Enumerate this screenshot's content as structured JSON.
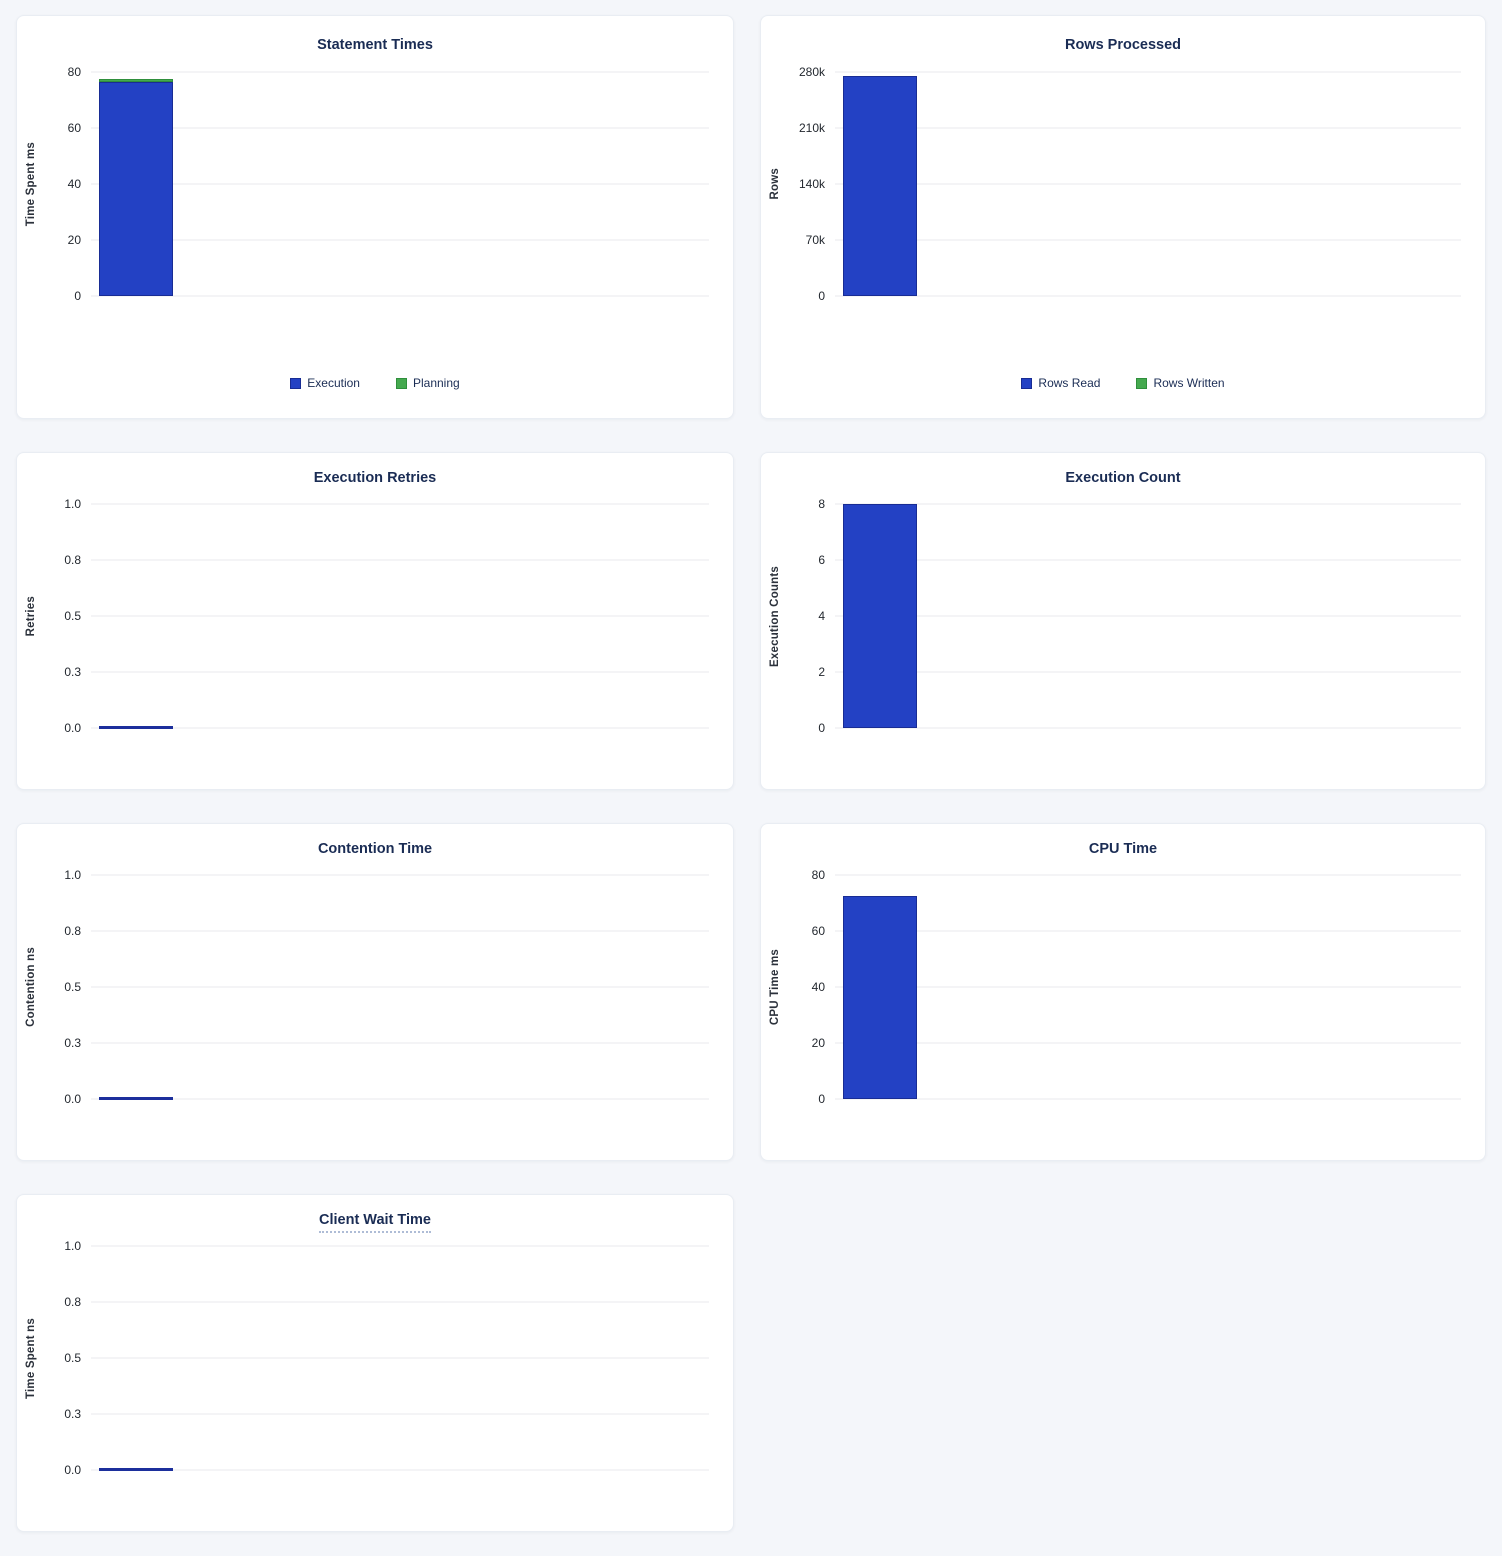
{
  "colors": {
    "page_background": "#f4f6fa",
    "panel_background": "#ffffff",
    "title_text": "#1a2c54",
    "tick_text": "#23282f",
    "gridline": "#e9eaed",
    "bar_blue": "#2341c4",
    "bar_blue_border": "#182c94",
    "bar_green": "#45a94f",
    "bar_green_border": "#2f8f3c",
    "zero_line": "#1c2f9c"
  },
  "chart_data": [
    {
      "type": "bar",
      "title": "Statement Times",
      "ylabel": "Time Spent ms",
      "ylim": [
        0,
        80
      ],
      "ytick_labels": [
        "80",
        "60",
        "40",
        "20",
        "0"
      ],
      "categories": [
        ""
      ],
      "stacked": true,
      "grid": "horizontal",
      "legend": true,
      "legend_position": "bottom",
      "series": [
        {
          "name": "Execution",
          "values": [
            76.5
          ],
          "color": "#2341c4",
          "border": "#182c94"
        },
        {
          "name": "Planning",
          "values": [
            1.2
          ],
          "color": "#45a94f",
          "border": "#2f8f3c"
        }
      ]
    },
    {
      "type": "bar",
      "title": "Rows Processed",
      "ylabel": "Rows",
      "ylim": [
        0,
        280000
      ],
      "ytick_labels": [
        "280k",
        "210k",
        "140k",
        "70k",
        "0"
      ],
      "categories": [
        ""
      ],
      "stacked": true,
      "grid": "horizontal",
      "legend": true,
      "legend_position": "bottom",
      "series": [
        {
          "name": "Rows Read",
          "values": [
            275000
          ],
          "color": "#2341c4",
          "border": "#182c94"
        },
        {
          "name": "Rows Written",
          "values": [
            0
          ],
          "color": "#45a94f",
          "border": "#2f8f3c"
        }
      ]
    },
    {
      "type": "bar",
      "title": "Execution Retries",
      "ylabel": "Retries",
      "ylim": [
        0,
        1
      ],
      "ytick_labels": [
        "1.0",
        "0.8",
        "0.5",
        "0.3",
        "0.0"
      ],
      "categories": [
        ""
      ],
      "stacked": false,
      "grid": "horizontal",
      "legend": false,
      "series": [
        {
          "name": "Retries",
          "values": [
            0
          ],
          "color": "#2341c4",
          "border": "#182c94"
        }
      ]
    },
    {
      "type": "bar",
      "title": "Execution Count",
      "ylabel": "Execution Counts",
      "ylim": [
        0,
        8
      ],
      "ytick_labels": [
        "8",
        "6",
        "4",
        "2",
        "0"
      ],
      "categories": [
        ""
      ],
      "stacked": false,
      "grid": "horizontal",
      "legend": false,
      "series": [
        {
          "name": "Execution Count",
          "values": [
            8
          ],
          "color": "#2341c4",
          "border": "#182c94"
        }
      ]
    },
    {
      "type": "bar",
      "title": "Contention Time",
      "ylabel": "Contention ns",
      "ylim": [
        0,
        1
      ],
      "ytick_labels": [
        "1.0",
        "0.8",
        "0.5",
        "0.3",
        "0.0"
      ],
      "categories": [
        ""
      ],
      "stacked": false,
      "grid": "horizontal",
      "legend": false,
      "series": [
        {
          "name": "Contention",
          "values": [
            0
          ],
          "color": "#2341c4",
          "border": "#182c94"
        }
      ]
    },
    {
      "type": "bar",
      "title": "CPU Time",
      "ylabel": "CPU Time ms",
      "ylim": [
        0,
        80
      ],
      "ytick_labels": [
        "80",
        "60",
        "40",
        "20",
        "0"
      ],
      "categories": [
        ""
      ],
      "stacked": false,
      "grid": "horizontal",
      "legend": false,
      "series": [
        {
          "name": "CPU Time",
          "values": [
            72.5
          ],
          "color": "#2341c4",
          "border": "#182c94"
        }
      ]
    },
    {
      "type": "bar",
      "title": "Client Wait Time",
      "title_tooltip": true,
      "ylabel": "Time Spent ns",
      "ylim": [
        0,
        1
      ],
      "ytick_labels": [
        "1.0",
        "0.8",
        "0.5",
        "0.3",
        "0.0"
      ],
      "categories": [
        ""
      ],
      "stacked": false,
      "grid": "horizontal",
      "legend": false,
      "series": [
        {
          "name": "Client Wait",
          "values": [
            0
          ],
          "color": "#2341c4",
          "border": "#182c94"
        }
      ]
    }
  ]
}
